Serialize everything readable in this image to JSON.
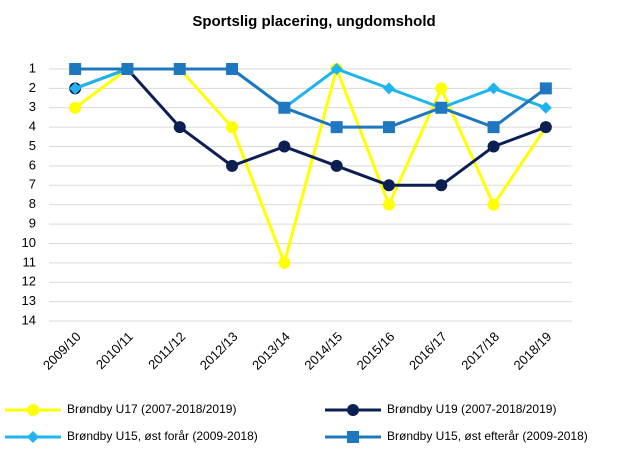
{
  "chart_data": {
    "type": "line",
    "title": "Sportslig placering, ungdomshold",
    "categories": [
      "2009/10",
      "2010/11",
      "2011/12",
      "2012/13",
      "2013/14",
      "2014/15",
      "2015/16",
      "2016/17",
      "2017/18",
      "2018/19"
    ],
    "series": [
      {
        "name": "Brøndby U17 (2007-2018/2019)",
        "color": "#ffff00",
        "marker": "circle",
        "values": [
          3,
          1,
          1,
          4,
          11,
          1,
          8,
          2,
          8,
          4
        ]
      },
      {
        "name": "Brøndby U19 (2007-2018/2019)",
        "color": "#0c1f52",
        "marker": "circle",
        "values": [
          2,
          1,
          4,
          6,
          5,
          6,
          7,
          7,
          5,
          4
        ]
      },
      {
        "name": "Brøndby U15, øst forår (2009-2018)",
        "color": "#1fb4ee",
        "marker": "diamond",
        "values": [
          2,
          1,
          1,
          1,
          3,
          1,
          2,
          3,
          2,
          3
        ]
      },
      {
        "name": "Brøndby U15, øst efterår (2009-2018)",
        "color": "#1f78bf",
        "marker": "square",
        "values": [
          1,
          1,
          1,
          1,
          3,
          4,
          4,
          3,
          4,
          2
        ]
      }
    ],
    "ylim": [
      1,
      14
    ],
    "y_inverted": true,
    "yticks": [
      1,
      2,
      3,
      4,
      5,
      6,
      7,
      8,
      9,
      10,
      11,
      12,
      13,
      14
    ],
    "grid": true
  }
}
